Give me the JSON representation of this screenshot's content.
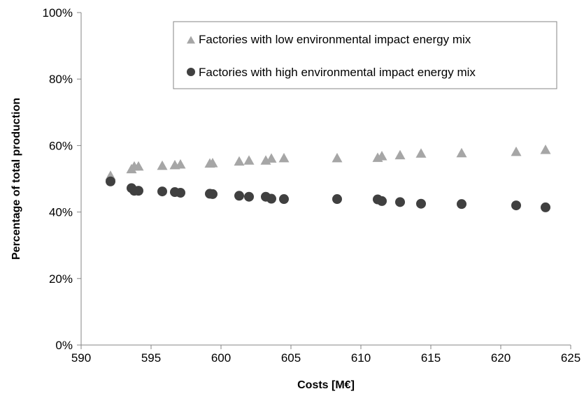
{
  "chart_data": {
    "type": "scatter",
    "xlabel": "Costs [M€]",
    "ylabel": "Percentage of total production",
    "xlim": [
      590,
      625
    ],
    "ylim": [
      0,
      100
    ],
    "x_ticks": [
      590,
      595,
      600,
      605,
      610,
      615,
      620,
      625
    ],
    "y_ticks": [
      0,
      20,
      40,
      60,
      80,
      100
    ],
    "x_tick_labels": [
      "590",
      "595",
      "600",
      "605",
      "610",
      "615",
      "620",
      "625"
    ],
    "y_tick_labels": [
      "0%",
      "20%",
      "40%",
      "60%",
      "80%",
      "100%"
    ],
    "grid": false,
    "legend_position": "top-right",
    "series": [
      {
        "name": "Factories with low environmental impact energy mix",
        "marker": "triangle",
        "color": "#a6a6a6",
        "x": [
          592.1,
          593.6,
          593.8,
          594.1,
          595.8,
          596.7,
          597.1,
          599.2,
          599.4,
          601.3,
          602.0,
          603.2,
          603.6,
          604.5,
          608.3,
          611.2,
          611.5,
          612.8,
          614.3,
          617.2,
          621.1,
          623.2
        ],
        "y": [
          50.8,
          52.8,
          53.6,
          53.6,
          53.8,
          54.0,
          54.2,
          54.5,
          54.6,
          55.1,
          55.4,
          55.4,
          56.0,
          56.1,
          56.1,
          56.2,
          56.7,
          57.0,
          57.5,
          57.6,
          58.0,
          58.6
        ]
      },
      {
        "name": "Factories with high environmental impact energy mix",
        "marker": "circle",
        "color": "#404040",
        "x": [
          592.1,
          593.6,
          593.8,
          594.1,
          595.8,
          596.7,
          597.1,
          599.2,
          599.4,
          601.3,
          602.0,
          603.2,
          603.6,
          604.5,
          608.3,
          611.2,
          611.5,
          612.8,
          614.3,
          617.2,
          621.1,
          623.2
        ],
        "y": [
          49.2,
          47.2,
          46.4,
          46.4,
          46.2,
          46.0,
          45.8,
          45.5,
          45.4,
          44.9,
          44.6,
          44.6,
          44.0,
          43.9,
          43.9,
          43.8,
          43.3,
          43.0,
          42.5,
          42.4,
          42.0,
          41.4
        ]
      }
    ]
  }
}
